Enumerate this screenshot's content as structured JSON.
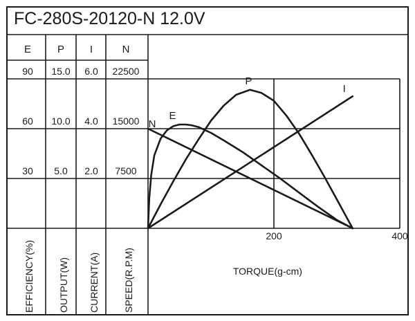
{
  "chart_data": {
    "type": "line",
    "title": "FC-280S-20120-N   12.0V",
    "xlabel": "TORQUE(g-cm)",
    "x_ticks": [
      "200",
      "400"
    ],
    "xlim": [
      0,
      400
    ],
    "columns": [
      {
        "header": "E",
        "label": "EFFICIENCY(%)",
        "ticks": [
          "90",
          "60",
          "30"
        ],
        "max": 90
      },
      {
        "header": "P",
        "label": "OUTPUT(W)",
        "ticks": [
          "15.0",
          "10.0",
          "5.0"
        ],
        "max": 15
      },
      {
        "header": "I",
        "label": "CURRENT(A)",
        "ticks": [
          "6.0",
          "4.0",
          "2.0"
        ],
        "max": 6
      },
      {
        "header": "N",
        "label": "SPEED(R.P.M)",
        "ticks": [
          "22500",
          "15000",
          "7500"
        ],
        "max": 22500
      }
    ],
    "grid": true,
    "series": [
      {
        "name": "N",
        "x": [
          0,
          325
        ],
        "values": [
          15000,
          0
        ]
      },
      {
        "name": "I",
        "x": [
          0,
          325
        ],
        "values": [
          0,
          5.3
        ]
      },
      {
        "name": "P",
        "x": [
          0,
          20,
          40,
          60,
          80,
          100,
          120,
          140,
          162,
          180,
          200,
          220,
          240,
          260,
          280,
          300,
          325
        ],
        "values": [
          0,
          2.4,
          4.7,
          6.9,
          8.9,
          10.8,
          12.3,
          13.4,
          13.9,
          13.6,
          12.8,
          11.3,
          9.5,
          7.4,
          5.2,
          2.9,
          0
        ]
      },
      {
        "name": "E",
        "x": [
          0,
          2,
          5,
          10,
          20,
          30,
          40,
          50,
          60,
          70,
          80,
          100,
          120,
          150,
          180,
          210,
          240,
          270,
          300,
          325
        ],
        "values": [
          0,
          18,
          32,
          44,
          54,
          59,
          61.5,
          62.5,
          62.5,
          62,
          61,
          57.5,
          53,
          46,
          38,
          30,
          21.5,
          13,
          5,
          0
        ]
      }
    ]
  }
}
